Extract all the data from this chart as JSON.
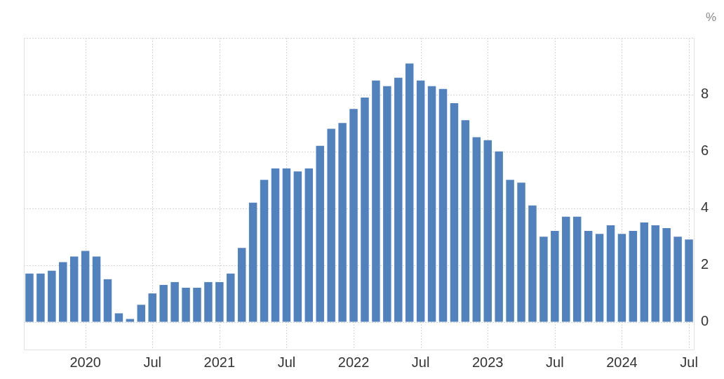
{
  "chart_data": {
    "type": "bar",
    "ylabel": "%",
    "categories": [
      null,
      null,
      null,
      null,
      null,
      "2020",
      null,
      null,
      null,
      null,
      null,
      "Jul",
      null,
      null,
      null,
      null,
      null,
      "2021",
      null,
      null,
      null,
      null,
      null,
      "Jul",
      null,
      null,
      null,
      null,
      null,
      "2022",
      null,
      null,
      null,
      null,
      null,
      "Jul",
      null,
      null,
      null,
      null,
      null,
      "2023",
      null,
      null,
      null,
      null,
      null,
      "Jul",
      null,
      null,
      null,
      null,
      null,
      "2024",
      null,
      null,
      null,
      null,
      null,
      "Jul"
    ],
    "values": [
      1.7,
      1.7,
      1.8,
      2.1,
      2.3,
      2.5,
      2.3,
      1.5,
      0.3,
      0.1,
      0.6,
      1.0,
      1.3,
      1.4,
      1.2,
      1.2,
      1.4,
      1.4,
      1.7,
      2.6,
      4.2,
      5.0,
      5.4,
      5.4,
      5.3,
      5.4,
      6.2,
      6.8,
      7.0,
      7.5,
      7.9,
      8.5,
      8.3,
      8.6,
      9.1,
      8.5,
      8.3,
      8.2,
      7.7,
      7.1,
      6.5,
      6.4,
      6.0,
      5.0,
      4.9,
      4.1,
      3.0,
      3.2,
      3.7,
      3.7,
      3.2,
      3.1,
      3.4,
      3.1,
      3.2,
      3.5,
      3.4,
      3.3,
      3.0,
      2.9
    ],
    "color": "#5282bd",
    "ylim": [
      -1,
      10
    ],
    "yticks": [
      0,
      2,
      4,
      6,
      8,
      {
        "value": 10,
        "label": null
      }
    ],
    "grid": true
  }
}
